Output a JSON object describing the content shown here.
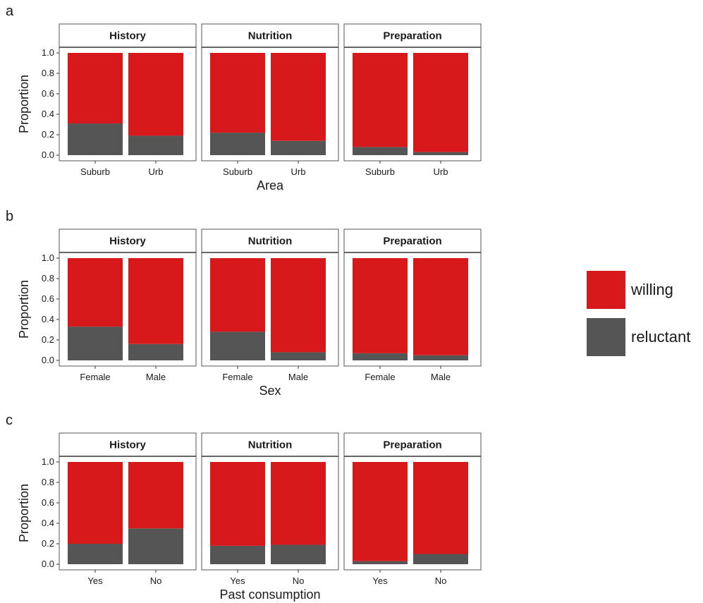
{
  "chart_data": [
    {
      "type": "bar",
      "stacked": true,
      "panel_label": "a",
      "facets": [
        "History",
        "Nutrition",
        "Preparation"
      ],
      "categories": [
        "Suburb",
        "Urb"
      ],
      "series": [
        {
          "name": "reluctant",
          "values": [
            [
              0.31,
              0.19
            ],
            [
              0.22,
              0.14
            ],
            [
              0.08,
              0.03
            ]
          ]
        },
        {
          "name": "willing",
          "values": [
            [
              0.69,
              0.81
            ],
            [
              0.78,
              0.86
            ],
            [
              0.92,
              0.97
            ]
          ]
        }
      ],
      "xlabel": "Area",
      "ylabel": "Proportion",
      "ylim": [
        0,
        1
      ],
      "yticks": [
        "0.0",
        "0.2",
        "0.4",
        "0.6",
        "0.8",
        "1.0"
      ],
      "grid": false
    },
    {
      "type": "bar",
      "stacked": true,
      "panel_label": "b",
      "facets": [
        "History",
        "Nutrition",
        "Preparation"
      ],
      "categories": [
        "Female",
        "Male"
      ],
      "series": [
        {
          "name": "reluctant",
          "values": [
            [
              0.33,
              0.16
            ],
            [
              0.28,
              0.08
            ],
            [
              0.07,
              0.05
            ]
          ]
        },
        {
          "name": "willing",
          "values": [
            [
              0.67,
              0.84
            ],
            [
              0.72,
              0.92
            ],
            [
              0.93,
              0.95
            ]
          ]
        }
      ],
      "xlabel": "Sex",
      "ylabel": "Proportion",
      "ylim": [
        0,
        1
      ],
      "yticks": [
        "0.0",
        "0.2",
        "0.4",
        "0.6",
        "0.8",
        "1.0"
      ],
      "grid": false
    },
    {
      "type": "bar",
      "stacked": true,
      "panel_label": "c",
      "facets": [
        "History",
        "Nutrition",
        "Preparation"
      ],
      "categories": [
        "Yes",
        "No"
      ],
      "series": [
        {
          "name": "reluctant",
          "values": [
            [
              0.2,
              0.35
            ],
            [
              0.18,
              0.19
            ],
            [
              0.03,
              0.1
            ]
          ]
        },
        {
          "name": "willing",
          "values": [
            [
              0.8,
              0.65
            ],
            [
              0.82,
              0.81
            ],
            [
              0.97,
              0.9
            ]
          ]
        }
      ],
      "xlabel": "Past consumption",
      "ylabel": "Proportion",
      "ylim": [
        0,
        1
      ],
      "yticks": [
        "0.0",
        "0.2",
        "0.4",
        "0.6",
        "0.8",
        "1.0"
      ],
      "grid": false
    }
  ],
  "legend": {
    "placement": "right",
    "items": [
      {
        "label": "willing",
        "color": "#d7191c"
      },
      {
        "label": "reluctant",
        "color": "#555555"
      }
    ]
  },
  "colors": {
    "willing": "#d7191c",
    "reluctant": "#555555",
    "strip_background": "#ffffff",
    "panel_border": "#555555"
  }
}
